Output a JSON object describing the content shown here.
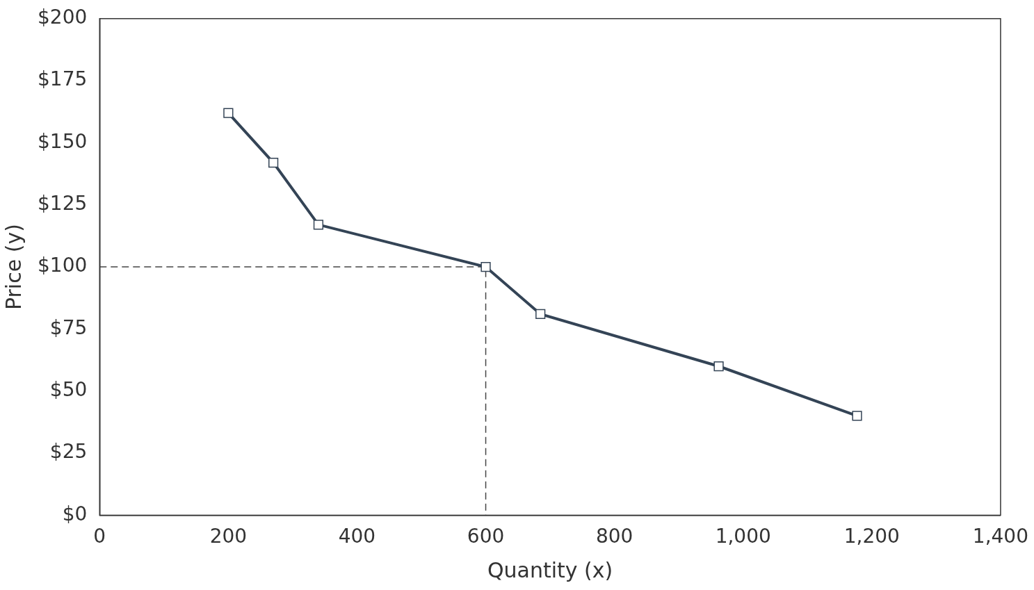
{
  "chart_data": {
    "type": "line",
    "x_label": "Quantity (x)",
    "y_label": "Price (y)",
    "x": [
      200,
      270,
      340,
      600,
      685,
      962,
      1177
    ],
    "values": [
      162,
      142,
      117,
      100,
      81,
      60,
      40
    ],
    "color": "#344456",
    "marker": "square",
    "line_style": "solid",
    "reference_lines": {
      "x": 600,
      "y": 100
    },
    "xlim": [
      0,
      1400
    ],
    "xticks": [
      0,
      200,
      400,
      600,
      800,
      {
        "value": 1000,
        "label": "1,000"
      },
      {
        "value": 1200,
        "label": "1,200"
      },
      {
        "value": 1400,
        "label": "1,400"
      }
    ],
    "ylim": [
      0,
      200
    ],
    "yticks": [
      {
        "value": 0,
        "label": "$0"
      },
      {
        "value": 25,
        "label": "$25"
      },
      {
        "value": 50,
        "label": "$50"
      },
      {
        "value": 75,
        "label": "$75"
      },
      {
        "value": 100,
        "label": "$100"
      },
      {
        "value": 125,
        "label": "$125"
      },
      {
        "value": 150,
        "label": "$150"
      },
      {
        "value": 175,
        "label": "$175"
      },
      {
        "value": 200,
        "label": "$200"
      }
    ],
    "grid": false
  }
}
